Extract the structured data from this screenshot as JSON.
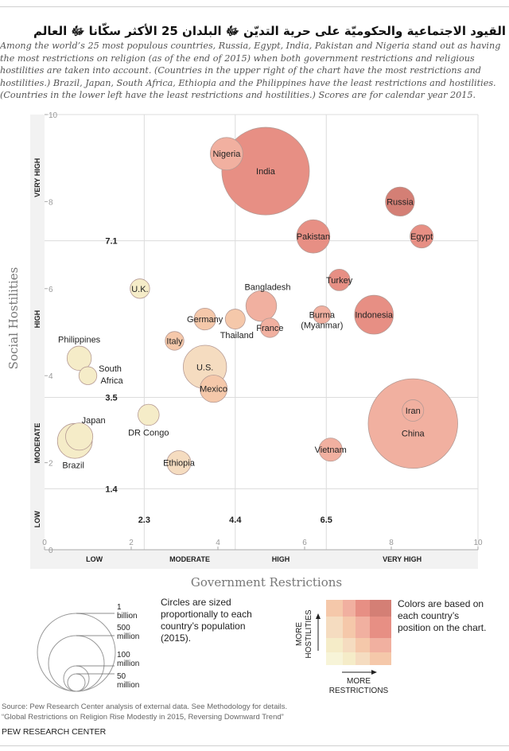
{
  "title": "القيود الاجتماعية والحكوميّة على حرية التديّن ﷻ البلدان 25 الأكثر سكّانا ﷻ العالم",
  "subtitle": "Among the world’s 25 most populous countries, Russia, Egypt, India, Pakistan and Nigeria stand out as having the most restrictions on religion (as of the end of 2015) when both government restrictions and religious hostilities are taken into account. (Countries in the upper right of the chart have the most restrictions and hostilities.) Brazil, Japan, South Africa, Ethiopia and the Philippines have the least restrictions and hostilities. (Countries in the lower left have the least restrictions and hostilities.) Scores are for calendar year 2015.",
  "chart_data": {
    "type": "scatter",
    "subtype": "bubble",
    "xlabel": "Government Restrictions",
    "ylabel": "Social Hostilities",
    "xlim": [
      0,
      10
    ],
    "ylim": [
      0,
      10
    ],
    "x_ticks": [
      "0",
      "2",
      "4",
      "6",
      "8",
      "10"
    ],
    "y_ticks": [
      "0",
      "2",
      "4",
      "6",
      "8",
      "10"
    ],
    "x_thresholds": [
      {
        "value": 2.3,
        "label": "2.3"
      },
      {
        "value": 4.4,
        "label": "4.4"
      },
      {
        "value": 6.5,
        "label": "6.5"
      }
    ],
    "y_thresholds": [
      {
        "value": 1.4,
        "label": "1.4"
      },
      {
        "value": 3.5,
        "label": "3.5"
      },
      {
        "value": 7.1,
        "label": "7.1"
      }
    ],
    "x_bands": [
      "LOW",
      "MODERATE",
      "HIGH",
      "VERY HIGH"
    ],
    "y_bands": [
      "LOW",
      "MODERATE",
      "HIGH",
      "VERY HIGH"
    ],
    "points": [
      {
        "name": "China",
        "x": 8.5,
        "y": 2.9,
        "population_m": 1371,
        "color": "#f1b0a0"
      },
      {
        "name": "Iran",
        "x": 8.5,
        "y": 3.2,
        "population_m": 79,
        "color": "#f1b0a0"
      },
      {
        "name": "India",
        "x": 5.1,
        "y": 8.7,
        "population_m": 1311,
        "color": "#e78f84"
      },
      {
        "name": "Nigeria",
        "x": 4.2,
        "y": 9.1,
        "population_m": 182,
        "color": "#f1b0a0"
      },
      {
        "name": "Russia",
        "x": 8.2,
        "y": 8.0,
        "population_m": 144,
        "color": "#d47f75"
      },
      {
        "name": "Pakistan",
        "x": 6.2,
        "y": 7.2,
        "population_m": 189,
        "color": "#e78f84"
      },
      {
        "name": "Egypt",
        "x": 8.7,
        "y": 7.2,
        "population_m": 92,
        "color": "#e78f84"
      },
      {
        "name": "Turkey",
        "x": 6.8,
        "y": 6.2,
        "population_m": 79,
        "color": "#e78f84"
      },
      {
        "name": "Indonesia",
        "x": 7.6,
        "y": 5.4,
        "population_m": 258,
        "color": "#e78f84"
      },
      {
        "name": "Burma (Myanmar)",
        "x": 6.4,
        "y": 5.4,
        "population_m": 54,
        "color": "#f1b0a0"
      },
      {
        "name": "Bangladesh",
        "x": 5.0,
        "y": 5.6,
        "population_m": 161,
        "color": "#f1b0a0"
      },
      {
        "name": "France",
        "x": 5.2,
        "y": 5.1,
        "population_m": 64,
        "color": "#f1b0a0"
      },
      {
        "name": "Thailand",
        "x": 4.4,
        "y": 5.3,
        "population_m": 68,
        "color": "#f5c8aa"
      },
      {
        "name": "Germany",
        "x": 3.7,
        "y": 5.3,
        "population_m": 81,
        "color": "#f5c8aa"
      },
      {
        "name": "Italy",
        "x": 3.0,
        "y": 4.8,
        "population_m": 60,
        "color": "#f5c8aa"
      },
      {
        "name": "U.S.",
        "x": 3.7,
        "y": 4.2,
        "population_m": 321,
        "color": "#f5dcc0"
      },
      {
        "name": "Mexico",
        "x": 3.9,
        "y": 3.7,
        "population_m": 127,
        "color": "#f5c8aa"
      },
      {
        "name": "U.K.",
        "x": 2.2,
        "y": 6.0,
        "population_m": 65,
        "color": "#f5ecc8"
      },
      {
        "name": "Philippines",
        "x": 0.8,
        "y": 4.4,
        "population_m": 101,
        "color": "#f5ecc8"
      },
      {
        "name": "South Africa",
        "x": 1.0,
        "y": 4.0,
        "population_m": 55,
        "color": "#f5ecc8"
      },
      {
        "name": "DR Congo",
        "x": 2.4,
        "y": 3.1,
        "population_m": 77,
        "color": "#f5ecc8"
      },
      {
        "name": "Japan",
        "x": 0.8,
        "y": 2.6,
        "population_m": 127,
        "color": "#f5ecc8"
      },
      {
        "name": "Brazil",
        "x": 0.7,
        "y": 2.5,
        "population_m": 208,
        "color": "#f5ecc8"
      },
      {
        "name": "Ethiopia",
        "x": 3.1,
        "y": 2.0,
        "population_m": 99,
        "color": "#f5dcc0"
      },
      {
        "name": "Vietnam",
        "x": 6.6,
        "y": 2.3,
        "population_m": 92,
        "color": "#f1b0a0"
      }
    ],
    "grid": true
  },
  "legend": {
    "size_text": "Circles are sized proportionally to each country’s population (2015).",
    "size_labels": [
      {
        "line1": "1",
        "line2": "billion",
        "population_m": 1000
      },
      {
        "line1": "500",
        "line2": "million",
        "population_m": 500
      },
      {
        "line1": "100",
        "line2": "million",
        "population_m": 100
      },
      {
        "line1": "50",
        "line2": "million",
        "population_m": 50
      }
    ],
    "color_text": "Colors are based on each country’s position on the chart.",
    "color_grid": [
      [
        "#f5c8aa",
        "#f1b0a0",
        "#e78f84",
        "#d47f75"
      ],
      [
        "#f5dcc0",
        "#f5c8aa",
        "#f1b0a0",
        "#e78f84"
      ],
      [
        "#f5ecc8",
        "#f5dcc0",
        "#f5c8aa",
        "#f1b0a0"
      ],
      [
        "#f7f4d8",
        "#f5ecc8",
        "#f5dcc0",
        "#f5c8aa"
      ]
    ],
    "y_arrow_label": [
      "MORE",
      "HOSTILITIES"
    ],
    "x_arrow_label": [
      "MORE",
      "RESTRICTIONS"
    ]
  },
  "source": "Source: Pew Research Center analysis of external data. See Methodology for details.",
  "report": "“Global Restrictions on Religion Rise Modestly in 2015, Reversing Downward Trend”",
  "org": "PEW RESEARCH CENTER"
}
